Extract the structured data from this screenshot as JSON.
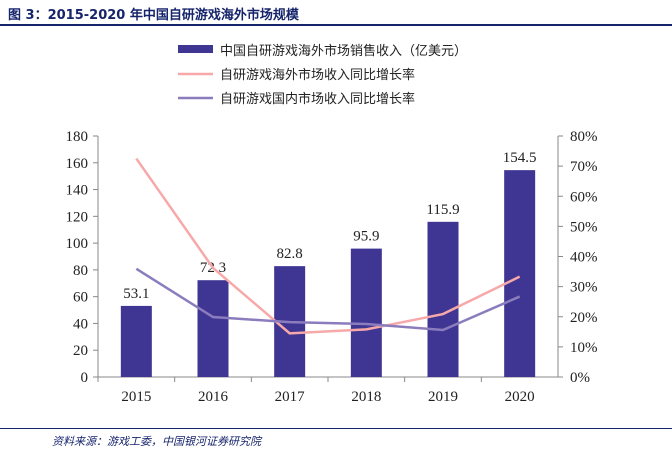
{
  "title": "图 3：2015-2020 年中国自研游戏海外市场规模",
  "source": "资料来源：游戏工委，中国银河证券研究院",
  "chart_data": {
    "type": "bar+line",
    "title": "2015-2020 年中国自研游戏海外市场规模",
    "categories": [
      "2015",
      "2016",
      "2017",
      "2018",
      "2019",
      "2020"
    ],
    "series": [
      {
        "name": "中国自研游戏海外市场销售收入（亿美元）",
        "type": "bar",
        "axis": "left",
        "color": "#3f3694",
        "values": [
          53.1,
          72.3,
          82.8,
          95.9,
          115.9,
          154.5
        ],
        "labels": [
          "53.1",
          "72.3",
          "82.8",
          "95.9",
          "115.9",
          "154.5"
        ]
      },
      {
        "name": "自研游戏海外市场收入同比增长率",
        "type": "line",
        "axis": "right",
        "color": "#f7a8a8",
        "values": [
          72.5,
          36.2,
          14.5,
          15.8,
          20.9,
          33.3
        ]
      },
      {
        "name": "自研游戏国内市场收入同比增长率",
        "type": "line",
        "axis": "right",
        "color": "#8b7dbd",
        "values": [
          35.9,
          19.9,
          18.2,
          17.6,
          15.6,
          26.7
        ]
      }
    ],
    "ylim": [
      0,
      180
    ],
    "yticks": [
      "0",
      "20",
      "40",
      "60",
      "80",
      "100",
      "120",
      "140",
      "160",
      "180"
    ],
    "y2lim": [
      0,
      80
    ],
    "y2ticks": [
      "0%",
      "10%",
      "20%",
      "30%",
      "40%",
      "50%",
      "60%",
      "70%",
      "80%"
    ],
    "legend": "top-center"
  }
}
